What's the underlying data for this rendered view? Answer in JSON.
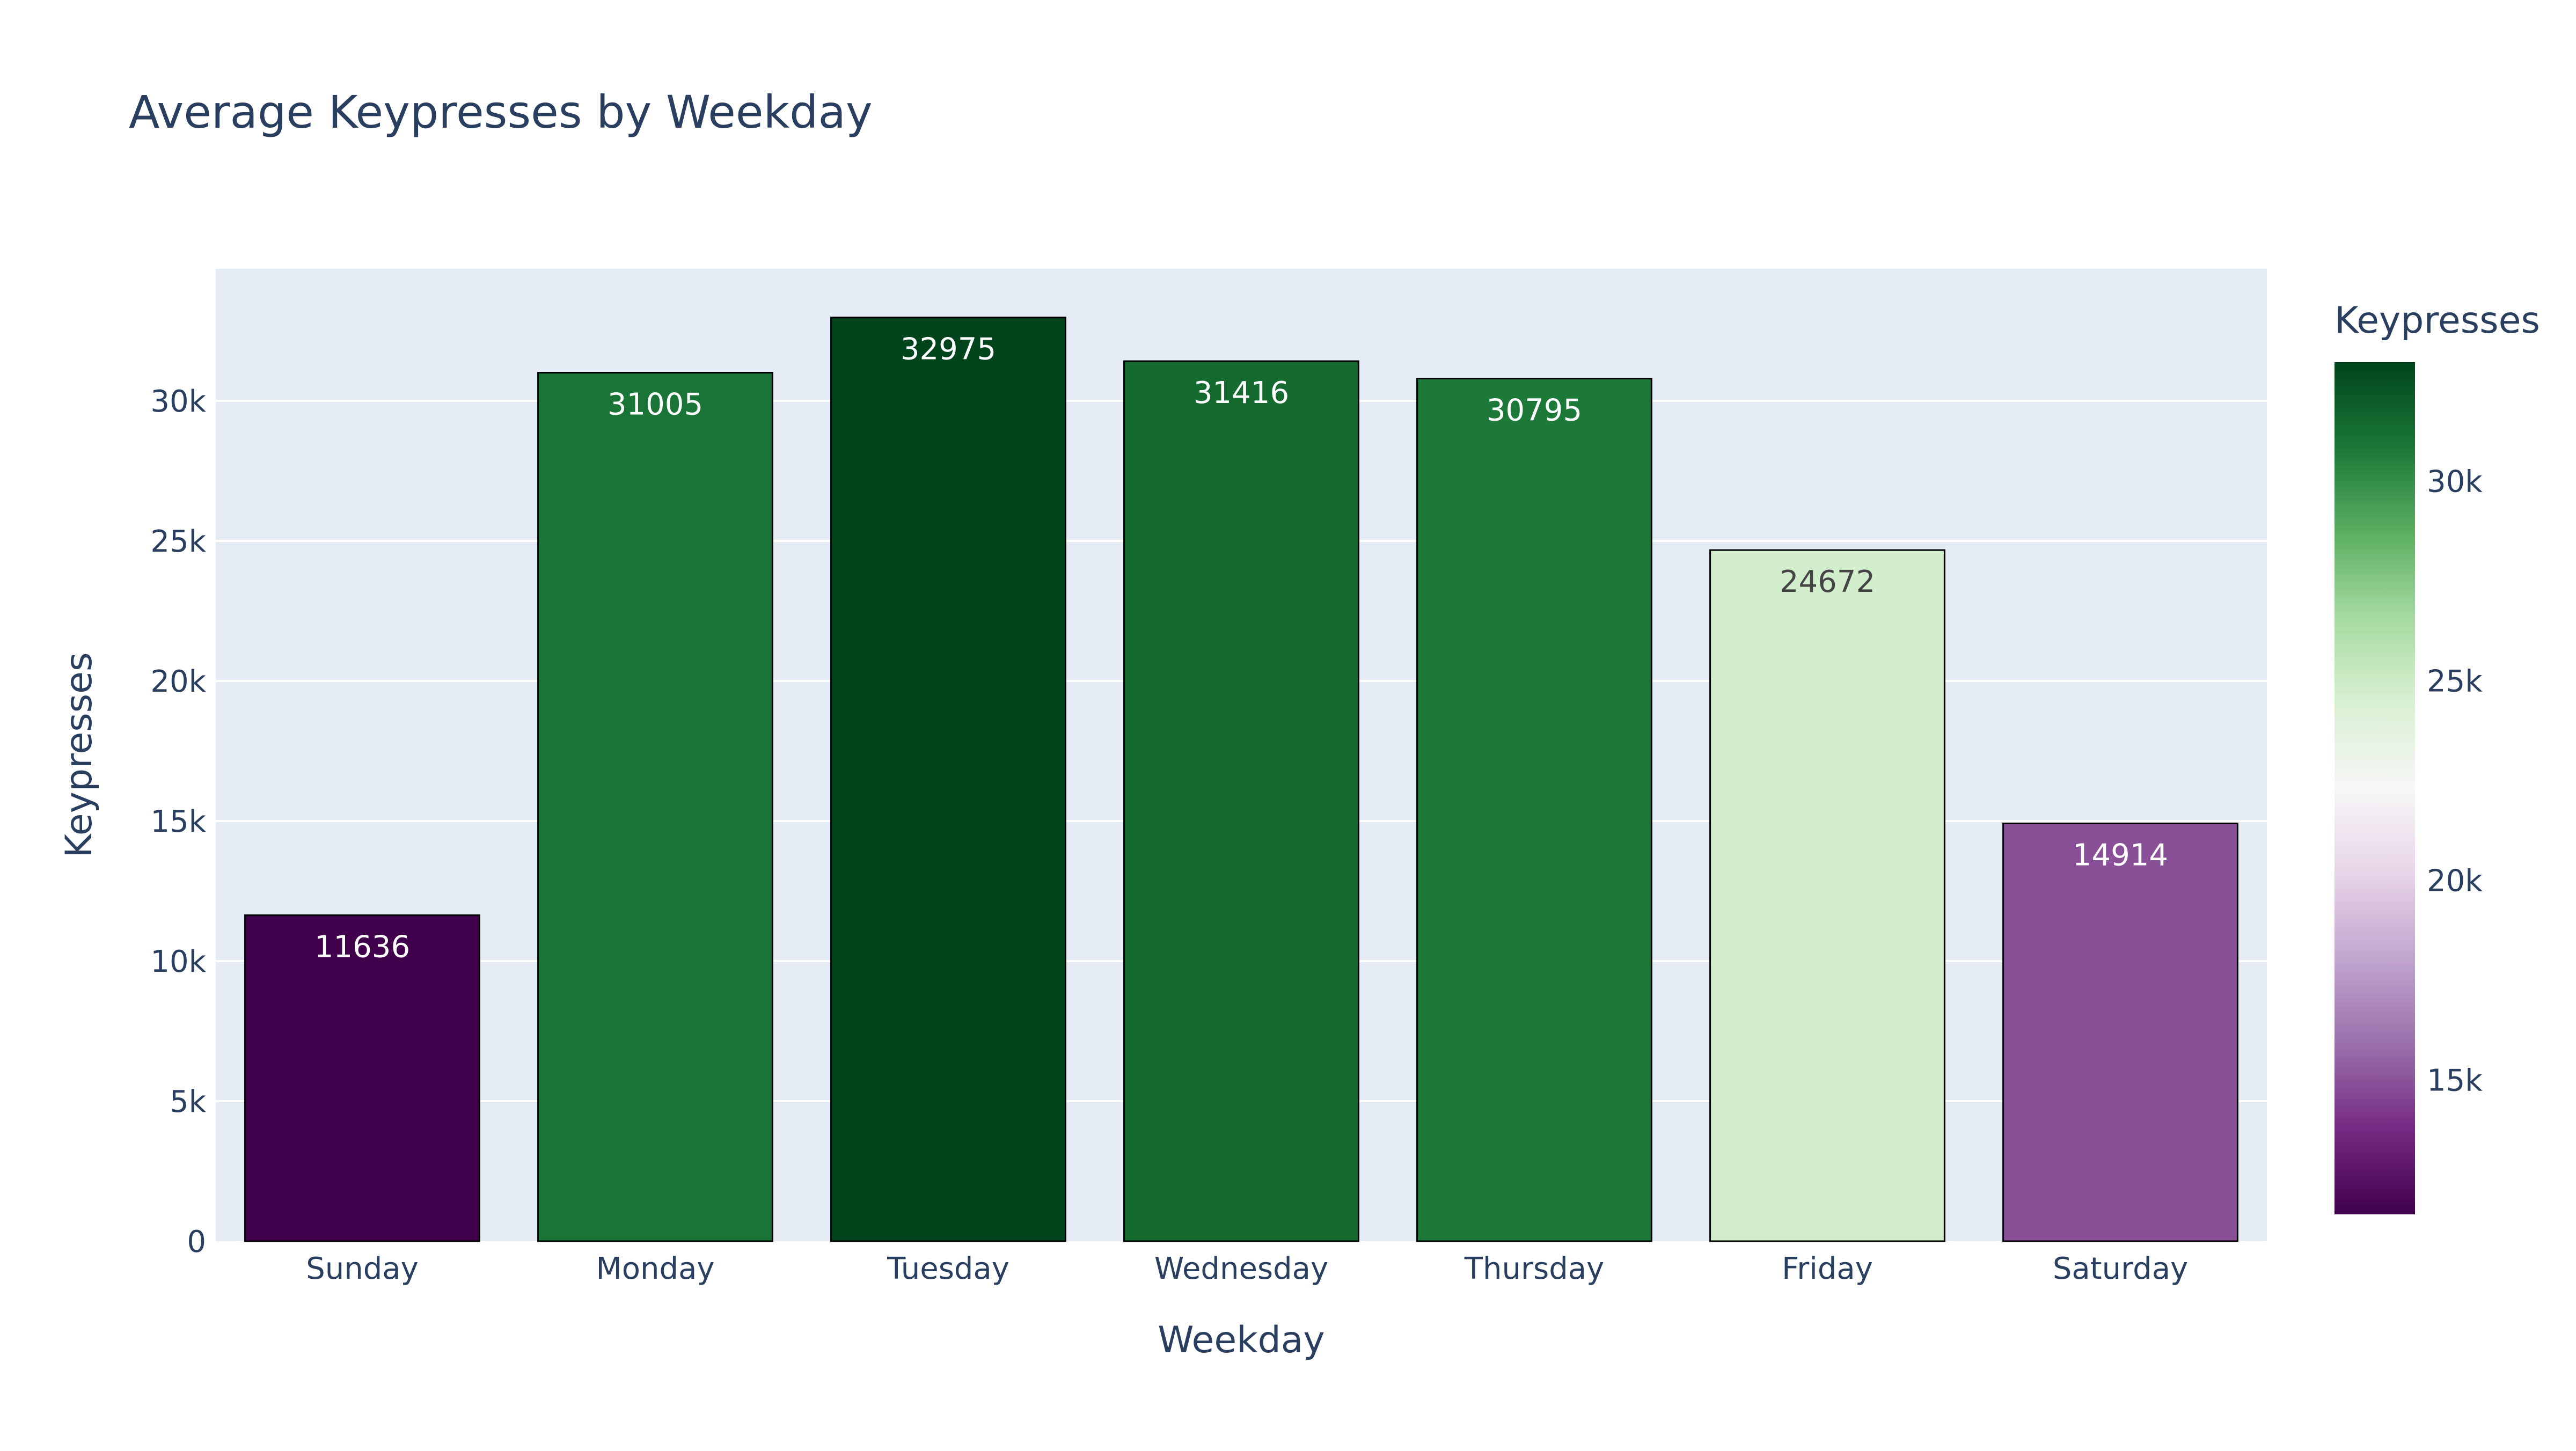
{
  "chart_data": {
    "type": "bar",
    "title": "Average Keypresses by Weekday",
    "xlabel": "Weekday",
    "ylabel": "Keypresses",
    "categories": [
      "Sunday",
      "Monday",
      "Tuesday",
      "Wednesday",
      "Thursday",
      "Friday",
      "Saturday"
    ],
    "values": [
      11636,
      31005,
      32975,
      31416,
      30795,
      24672,
      14914
    ],
    "ylim": [
      0,
      34712
    ],
    "yticks": [
      0,
      5000,
      10000,
      15000,
      20000,
      25000,
      30000
    ],
    "ytick_labels": [
      "0",
      "5k",
      "10k",
      "15k",
      "20k",
      "25k",
      "30k"
    ],
    "grid": true,
    "colorbar": {
      "title": "Keypresses",
      "colorscale": "PRGn",
      "range": [
        11636,
        32975
      ],
      "ticks": [
        15000,
        20000,
        25000,
        30000
      ],
      "tick_labels": [
        "15k",
        "20k",
        "25k",
        "30k"
      ],
      "position": "right"
    },
    "colors": {
      "plot_background": "#E5ECF6",
      "gridline": "#FFFFFF",
      "text": "#2A3F5F",
      "bar_outline": "#000000"
    }
  }
}
